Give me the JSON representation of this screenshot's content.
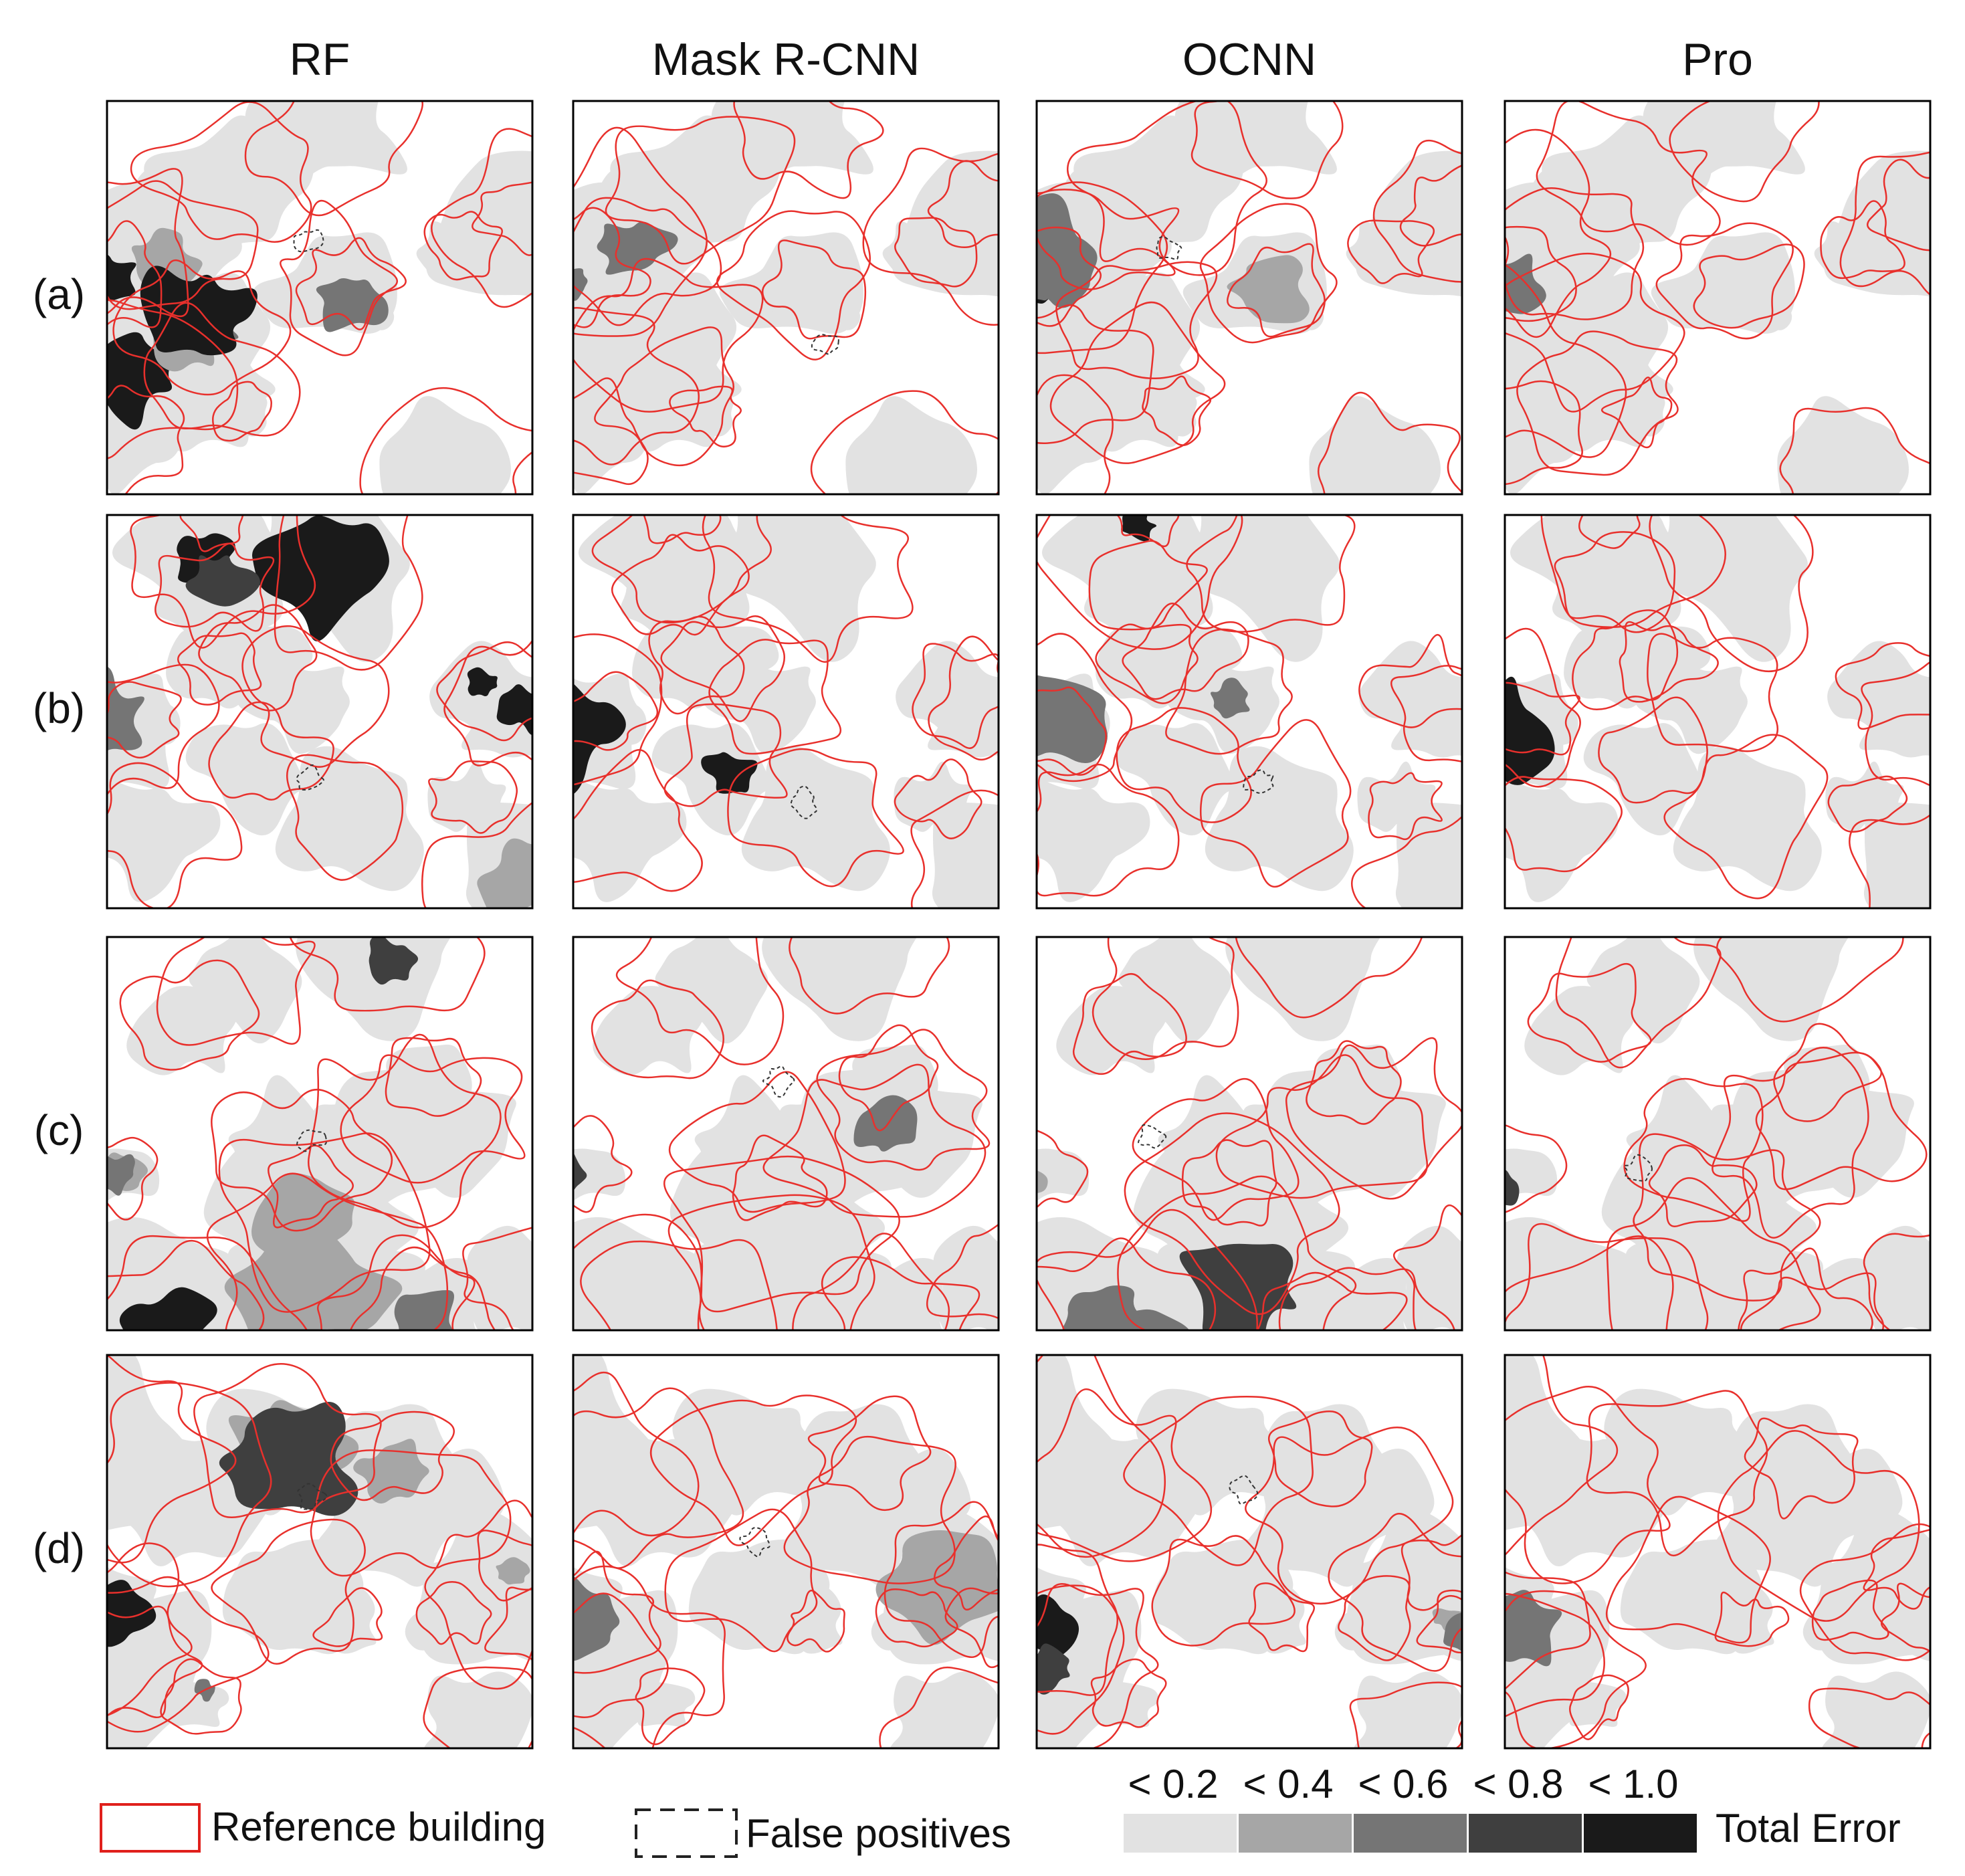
{
  "columns": [
    "RF",
    "Mask R-CNN",
    "OCNN",
    "Pro"
  ],
  "rows": [
    "(a)",
    "(b)",
    "(c)",
    "(d)"
  ],
  "legend": {
    "reference_building": "Reference building",
    "false_positives": "False positives",
    "error_scale": {
      "title": "Total Error",
      "bins": [
        {
          "label": "< 0.2",
          "color": "#e2e2e2"
        },
        {
          "label": "< 0.4",
          "color": "#a6a6a6"
        },
        {
          "label": "< 0.6",
          "color": "#757575"
        },
        {
          "label": "< 0.8",
          "color": "#3f3f3f"
        },
        {
          "label": "< 1.0",
          "color": "#1a1a1a"
        }
      ]
    }
  }
}
